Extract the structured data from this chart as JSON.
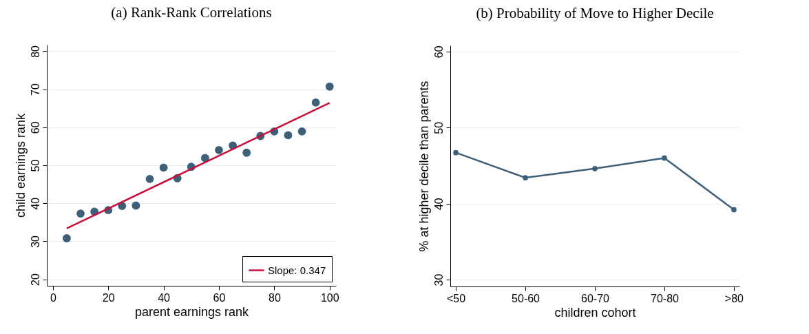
{
  "chart_data": [
    {
      "type": "scatter",
      "title": "(a) Rank-Rank Correlations",
      "xlabel": "parent earnings rank",
      "ylabel": "child earnings rank",
      "xlim": [
        -2.2,
        102.3
      ],
      "ylim": [
        18.3,
        81.7
      ],
      "xticks": [
        0,
        20,
        40,
        60,
        80,
        100
      ],
      "yticks": [
        20,
        30,
        40,
        50,
        60,
        70,
        80
      ],
      "grid": "y",
      "legend": "bottom right",
      "x": [
        5,
        10,
        15,
        20,
        25,
        30,
        35,
        40,
        45,
        50,
        55,
        60,
        65,
        70,
        75,
        80,
        85,
        90,
        95,
        100
      ],
      "series": [
        {
          "color": "#3e5f78",
          "marker": "circle",
          "values": [
            30.8,
            37.3,
            37.8,
            38.2,
            39.3,
            39.4,
            46.4,
            49.4,
            46.6,
            49.6,
            51.9,
            54.0,
            55.2,
            53.3,
            57.7,
            58.9,
            57.9,
            58.9,
            66.5,
            70.7
          ]
        },
        {
          "type": "line",
          "name": "Slope: 0.347",
          "color": "#c8103c",
          "marker": "none",
          "x": [
            5,
            100
          ],
          "values": [
            33.4,
            66.4
          ]
        }
      ]
    },
    {
      "type": "line",
      "title": "(b) Probability of Move to Higher Decile",
      "xlabel": "children cohort",
      "ylabel": "% at higher decile than parents",
      "categories": [
        "<50",
        "50-60",
        "60-70",
        "70-80",
        ">80"
      ],
      "ylim": [
        29.1,
        60.8
      ],
      "yticks": [
        30,
        40,
        50,
        60
      ],
      "grid": "y",
      "marker": "circle",
      "series": [
        {
          "color": "#3e5f78",
          "values": [
            46.7,
            43.4,
            44.6,
            46.0,
            39.2
          ]
        }
      ]
    }
  ]
}
